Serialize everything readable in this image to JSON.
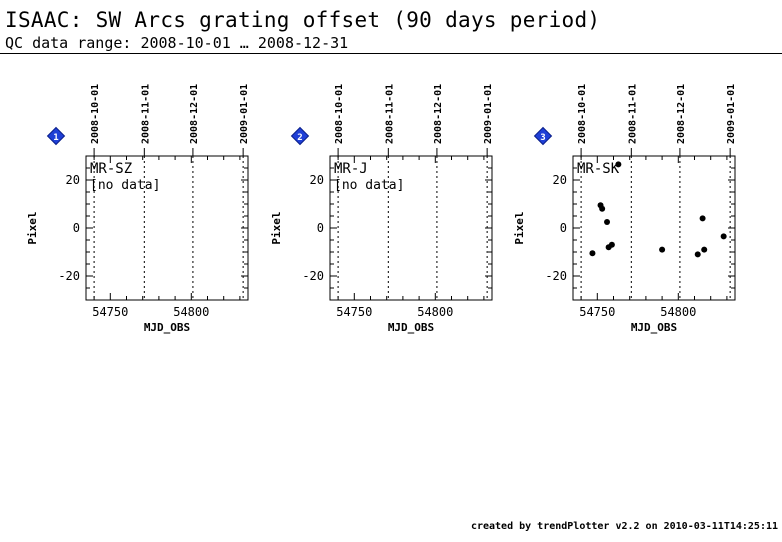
{
  "page": {
    "title": "ISAAC: SW Arcs grating offset (90 days period)",
    "subtitle": "QC data range: 2008-10-01 … 2008-12-31",
    "footer": "created by trendPlotter v2.2 on 2010-03-11T14:25:11"
  },
  "chart_data": [
    {
      "type": "scatter",
      "badge": "1",
      "panel_label": "MR-SZ",
      "note": "[no data]",
      "xlabel": "MJD_OBS",
      "ylabel": "Pixel",
      "xlim": [
        54735,
        54835
      ],
      "ylim": [
        -30,
        30
      ],
      "x_ticks": [
        54750,
        54800
      ],
      "y_ticks": [
        -20,
        0,
        20
      ],
      "date_ticks": [
        {
          "label": "2008-10-01",
          "mjd": 54740
        },
        {
          "label": "2008-11-01",
          "mjd": 54771
        },
        {
          "label": "2008-12-01",
          "mjd": 54801
        },
        {
          "label": "2009-01-01",
          "mjd": 54832
        }
      ],
      "points": []
    },
    {
      "type": "scatter",
      "badge": "2",
      "panel_label": "MR-J",
      "note": "[no data]",
      "xlabel": "MJD_OBS",
      "ylabel": "Pixel",
      "xlim": [
        54735,
        54835
      ],
      "ylim": [
        -30,
        30
      ],
      "x_ticks": [
        54750,
        54800
      ],
      "y_ticks": [
        -20,
        0,
        20
      ],
      "date_ticks": [
        {
          "label": "2008-10-01",
          "mjd": 54740
        },
        {
          "label": "2008-11-01",
          "mjd": 54771
        },
        {
          "label": "2008-12-01",
          "mjd": 54801
        },
        {
          "label": "2009-01-01",
          "mjd": 54832
        }
      ],
      "points": []
    },
    {
      "type": "scatter",
      "badge": "3",
      "panel_label": "MR-SK",
      "note": "",
      "xlabel": "MJD_OBS",
      "ylabel": "Pixel",
      "xlim": [
        54735,
        54835
      ],
      "ylim": [
        -30,
        30
      ],
      "x_ticks": [
        54750,
        54800
      ],
      "y_ticks": [
        -20,
        0,
        20
      ],
      "date_ticks": [
        {
          "label": "2008-10-01",
          "mjd": 54740
        },
        {
          "label": "2008-11-01",
          "mjd": 54771
        },
        {
          "label": "2008-12-01",
          "mjd": 54801
        },
        {
          "label": "2009-01-01",
          "mjd": 54832
        }
      ],
      "points": [
        {
          "x": 54747,
          "y": -10.5
        },
        {
          "x": 54752,
          "y": 9.5
        },
        {
          "x": 54753,
          "y": 8.0
        },
        {
          "x": 54756,
          "y": 2.5
        },
        {
          "x": 54757,
          "y": -8.0
        },
        {
          "x": 54759,
          "y": -7.0
        },
        {
          "x": 54763,
          "y": 26.5
        },
        {
          "x": 54790,
          "y": -9.0
        },
        {
          "x": 54812,
          "y": -11.0
        },
        {
          "x": 54815,
          "y": 4.0
        },
        {
          "x": 54816,
          "y": -9.0
        },
        {
          "x": 54828,
          "y": -3.5
        }
      ]
    }
  ]
}
